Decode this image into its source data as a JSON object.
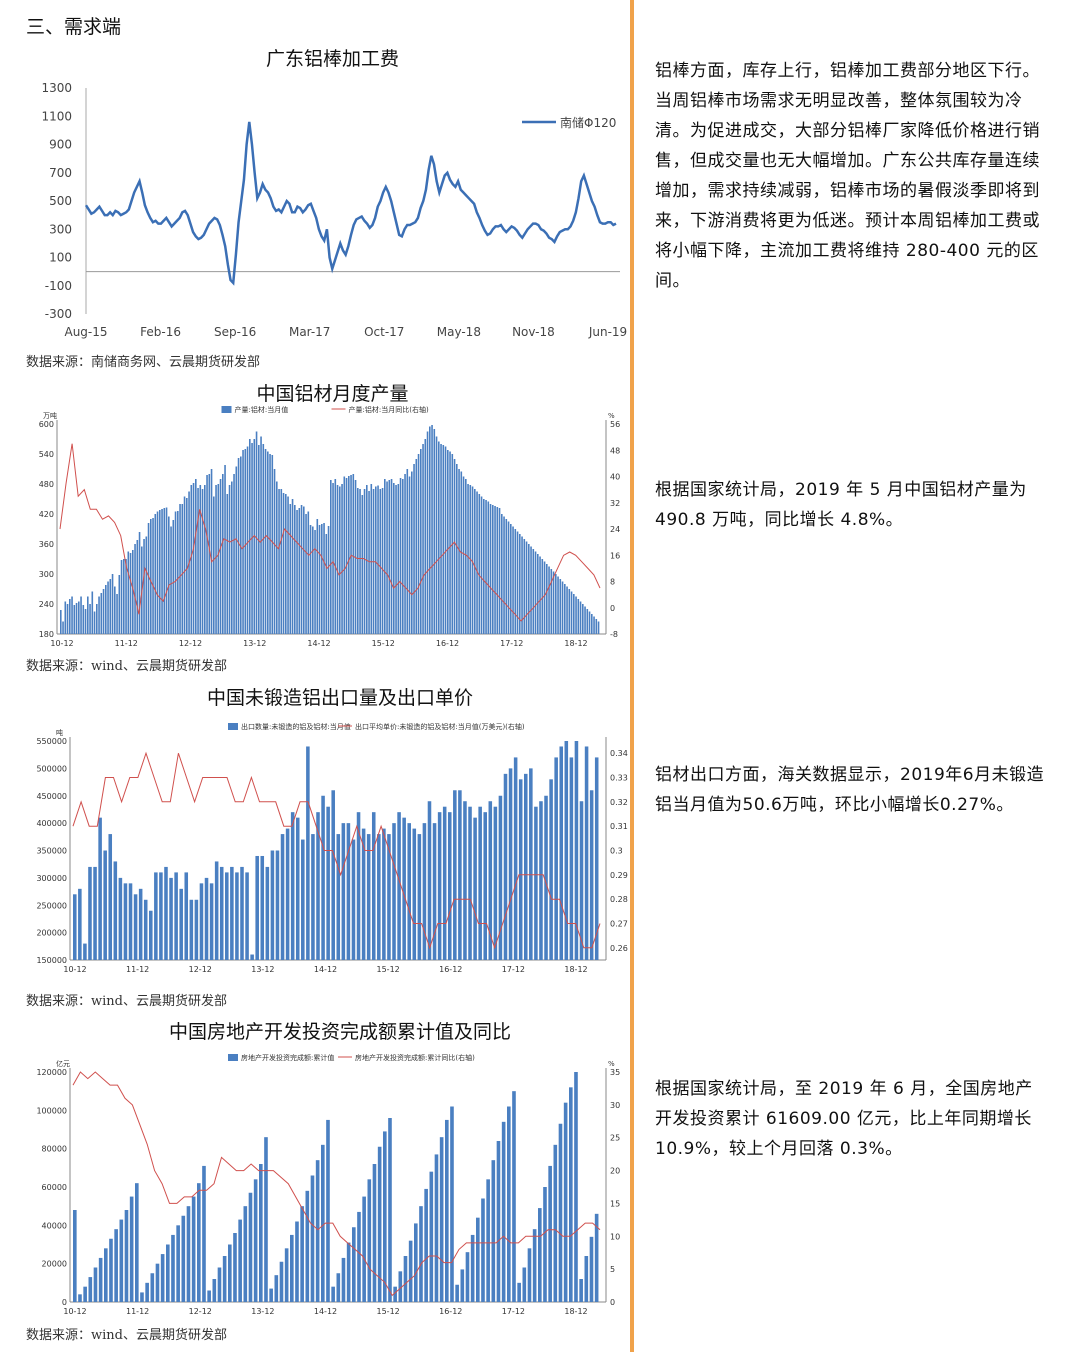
{
  "section_title": "三、需求端",
  "colors": {
    "divider": "#f0a24a",
    "bar": "#4a7fc1",
    "line_main": "#3b6fb5",
    "line_red": "#d0504d"
  },
  "panels": [
    {
      "title": "广东铝棒加工费",
      "source": "数据来源：南储商务网、云晨期货研发部",
      "description": "铝棒方面，库存上行，铝棒加工费部分地区下行。当周铝棒市场需求无明显改善，整体氛围较为冷清。为促进成交，大部分铝棒厂家降低价格进行销售，但成交量也无大幅增加。广东公共库存量连续增加，需求持续减弱，铝棒市场的暑假淡季即将到来，下游消费将更为低迷。预计本周铝棒加工费或将小幅下降，主流加工费将维持 280-400 元的区间。"
    },
    {
      "title": "中国铝材月度产量",
      "source": "数据来源：wind、云晨期货研发部",
      "description": "根据国家统计局，2019 年 5 月中国铝材产量为 490.8 万吨，同比增长 4.8%。"
    },
    {
      "title": "中国未锻造铝出口量及出口单价",
      "source": "数据来源：wind、云晨期货研发部",
      "description": "铝材出口方面，海关数据显示，2019年6月未锻造铝当月值为50.6万吨，环比小幅增长0.27%。"
    },
    {
      "title": "中国房地产开发投资完成额累计值及同比",
      "source": "数据来源：wind、云晨期货研发部",
      "description": "根据国家统计局，至 2019 年 6 月，全国房地产开发投资累计 61609.00 亿元，比上年同期增长 10.9%，较上个月回落 0.3%。"
    }
  ],
  "chart_data": [
    {
      "type": "line",
      "title": "广东铝棒加工费",
      "legend": "南储Φ120",
      "ylim": [
        -300,
        1300
      ],
      "yticks": [
        1300,
        1100,
        900,
        700,
        500,
        300,
        100,
        -100,
        -300
      ],
      "xticks": [
        "Aug-15",
        "Feb-16",
        "Sep-16",
        "Mar-17",
        "Oct-17",
        "May-18",
        "Nov-18",
        "Jun-19"
      ],
      "values": [
        470,
        440,
        410,
        420,
        440,
        460,
        430,
        400,
        400,
        420,
        400,
        430,
        420,
        400,
        410,
        420,
        440,
        500,
        560,
        600,
        640,
        560,
        470,
        420,
        380,
        350,
        360,
        340,
        340,
        360,
        380,
        350,
        320,
        340,
        360,
        380,
        420,
        430,
        400,
        340,
        280,
        250,
        230,
        240,
        260,
        300,
        340,
        360,
        380,
        370,
        330,
        260,
        180,
        50,
        -60,
        -80,
        120,
        350,
        500,
        650,
        900,
        1060,
        900,
        700,
        520,
        560,
        620,
        580,
        560,
        520,
        460,
        430,
        440,
        420,
        460,
        500,
        480,
        420,
        420,
        460,
        450,
        420,
        440,
        470,
        480,
        430,
        380,
        300,
        250,
        220,
        300,
        100,
        20,
        80,
        140,
        200,
        150,
        120,
        180,
        260,
        330,
        370,
        380,
        390,
        360,
        340,
        310,
        330,
        380,
        460,
        500,
        560,
        600,
        560,
        500,
        420,
        340,
        260,
        250,
        300,
        330,
        330,
        340,
        350,
        380,
        450,
        500,
        580,
        720,
        820,
        760,
        640,
        560,
        620,
        680,
        700,
        650,
        620,
        600,
        640,
        580,
        560,
        540,
        520,
        500,
        480,
        420,
        380,
        330,
        290,
        260,
        270,
        300,
        320,
        320,
        330,
        300,
        280,
        300,
        320,
        310,
        290,
        260,
        240,
        270,
        300,
        320,
        340,
        340,
        330,
        300,
        290,
        270,
        240,
        230,
        210,
        250,
        280,
        290,
        300,
        300,
        320,
        360,
        420,
        520,
        640,
        680,
        620,
        560,
        500,
        460,
        400,
        350,
        340,
        340,
        350,
        350,
        330,
        340
      ],
      "values_note": "weekly values Aug-15 to Jul-19, read from plot"
    },
    {
      "type": "bar+line",
      "title": "中国铝材月度产量",
      "legend": [
        "产量:铝材:当月值",
        "产量:铝材:当月同比(右轴)"
      ],
      "yunit_left": "万吨",
      "yunit_right": "%",
      "ylim_left": [
        180,
        600
      ],
      "yticks_left": [
        600,
        540,
        480,
        420,
        360,
        300,
        240,
        180
      ],
      "ylim_right": [
        -8,
        56
      ],
      "yticks_right": [
        56,
        48,
        40,
        32,
        24,
        16,
        8,
        0,
        -8
      ],
      "xticks": [
        "10-12",
        "11-12",
        "12-12",
        "13-12",
        "14-12",
        "15-12",
        "16-12",
        "17-12",
        "18-12"
      ],
      "bars": [
        228,
        205,
        245,
        240,
        250,
        255,
        238,
        242,
        245,
        255,
        238,
        230,
        255,
        240,
        265,
        225,
        240,
        255,
        262,
        270,
        278,
        285,
        290,
        300,
        275,
        260,
        298,
        328,
        330,
        330,
        345,
        342,
        348,
        360,
        368,
        384,
        355,
        370,
        375,
        402,
        410,
        412,
        420,
        425,
        428,
        430,
        432,
        433,
        415,
        395,
        408,
        425,
        426,
        440,
        440,
        455,
        452,
        465,
        478,
        482,
        490,
        472,
        478,
        470,
        478,
        498,
        500,
        510,
        455,
        478,
        480,
        490,
        500,
        518,
        460,
        478,
        485,
        500,
        515,
        532,
        535,
        548,
        550,
        555,
        570,
        562,
        570,
        585,
        558,
        575,
        560,
        550,
        545,
        540,
        538,
        510,
        485,
        470,
        470,
        462,
        460,
        455,
        440,
        450,
        438,
        428,
        432,
        438,
        435,
        420,
        425,
        398,
        395,
        388,
        410,
        398,
        400,
        402,
        380,
        396,
        488,
        482,
        490,
        478,
        475,
        480,
        495,
        492,
        496,
        498,
        500,
        488,
        472,
        470,
        458,
        470,
        478,
        466,
        480,
        470,
        475,
        477,
        470,
        472,
        490,
        485,
        488,
        490,
        482,
        478,
        480,
        492,
        490,
        500,
        510,
        495,
        505,
        520,
        530,
        540,
        550,
        560,
        570,
        585,
        595,
        598,
        590,
        575,
        565,
        560,
        558,
        555,
        548,
        545,
        540,
        530,
        520,
        510,
        505,
        495,
        490,
        480,
        478,
        475,
        470,
        465,
        460,
        455,
        450,
        448,
        445,
        440,
        438,
        436,
        434,
        432,
        420,
        415,
        410,
        405,
        400,
        395,
        390,
        385,
        380,
        375,
        370,
        365,
        360,
        355,
        350,
        345,
        340,
        335,
        330,
        325,
        320,
        315,
        310,
        305,
        300,
        295,
        290,
        285,
        280,
        275,
        270,
        265,
        260,
        255,
        250,
        245,
        240,
        235,
        230,
        225,
        220,
        215,
        210,
        205
      ],
      "line": [
        24,
        38,
        50,
        34,
        36,
        30,
        30,
        27,
        28,
        26,
        22,
        12,
        6,
        -2,
        12,
        8,
        4,
        2,
        7,
        8,
        10,
        12,
        18,
        30,
        24,
        14,
        16,
        21,
        20,
        21,
        18,
        20,
        22,
        20,
        22,
        20,
        18,
        24,
        22,
        20,
        18,
        16,
        18,
        16,
        12,
        14,
        10,
        12,
        16,
        15,
        15,
        14,
        14,
        12,
        10,
        6,
        8,
        6,
        4,
        6,
        10,
        12,
        14,
        16,
        18,
        20,
        17,
        16,
        14,
        10,
        8,
        6,
        4,
        2,
        0,
        -2,
        -4,
        -2,
        0,
        2,
        4,
        8,
        12,
        16,
        17,
        16,
        14,
        12,
        10,
        6
      ]
    },
    {
      "type": "bar+line",
      "title": "中国未锻造铝出口量及出口单价",
      "legend": [
        "出口数量:未锻造的铝及铝材:当月值",
        "出口平均单价:未锻造的铝及铝材:当月值(万美元)(右轴)"
      ],
      "yunit_left": "吨",
      "ylim_left": [
        150000,
        550000
      ],
      "yticks_left": [
        550000,
        500000,
        450000,
        400000,
        350000,
        300000,
        250000,
        200000,
        150000
      ],
      "ylim_right": [
        0.255,
        0.345
      ],
      "yticks_right": [
        0.34,
        0.33,
        0.32,
        0.31,
        0.3,
        0.29,
        0.28,
        0.27,
        0.26
      ],
      "xticks": [
        "10-12",
        "11-12",
        "12-12",
        "13-12",
        "14-12",
        "15-12",
        "16-12",
        "17-12",
        "18-12"
      ],
      "bars": [
        270000,
        280000,
        180000,
        320000,
        320000,
        410000,
        350000,
        380000,
        330000,
        300000,
        290000,
        290000,
        270000,
        280000,
        260000,
        240000,
        310000,
        310000,
        320000,
        300000,
        310000,
        280000,
        310000,
        260000,
        260000,
        290000,
        300000,
        290000,
        330000,
        320000,
        310000,
        320000,
        310000,
        320000,
        310000,
        160000,
        340000,
        340000,
        320000,
        350000,
        350000,
        380000,
        390000,
        420000,
        410000,
        370000,
        540000,
        380000,
        420000,
        450000,
        430000,
        460000,
        380000,
        400000,
        400000,
        370000,
        420000,
        390000,
        380000,
        420000,
        380000,
        390000,
        380000,
        400000,
        420000,
        410000,
        400000,
        390000,
        380000,
        400000,
        440000,
        400000,
        420000,
        430000,
        420000,
        460000,
        460000,
        440000,
        430000,
        410000,
        430000,
        420000,
        440000,
        430000,
        450000,
        490000,
        500000,
        520000,
        480000,
        490000,
        500000,
        430000,
        440000,
        450000,
        480000,
        520000,
        540000,
        550000,
        520000,
        550000,
        440000,
        540000,
        460000,
        520000
      ],
      "line": [
        0.31,
        0.32,
        0.31,
        0.31,
        0.33,
        0.33,
        0.32,
        0.33,
        0.33,
        0.34,
        0.33,
        0.32,
        0.32,
        0.34,
        0.33,
        0.32,
        0.33,
        0.33,
        0.33,
        0.33,
        0.32,
        0.32,
        0.33,
        0.32,
        0.32,
        0.32,
        0.31,
        0.31,
        0.32,
        0.32,
        0.31,
        0.3,
        0.3,
        0.29,
        0.3,
        0.31,
        0.3,
        0.3,
        0.31,
        0.3,
        0.29,
        0.28,
        0.27,
        0.27,
        0.26,
        0.27,
        0.27,
        0.28,
        0.28,
        0.28,
        0.27,
        0.27,
        0.26,
        0.27,
        0.28,
        0.29,
        0.29,
        0.29,
        0.29,
        0.28,
        0.28,
        0.27,
        0.27,
        0.26,
        0.26,
        0.27
      ],
      "line_note": "export average price series (right axis)"
    },
    {
      "type": "bar+line",
      "title": "中国房地产开发投资完成额累计值及同比",
      "legend": [
        "房地产开发投资完成额:累计值",
        "房地产开发投资完成额:累计同比(右轴)"
      ],
      "yunit_left": "亿元",
      "yunit_right": "%",
      "ylim_left": [
        0,
        120000
      ],
      "yticks_left": [
        120000,
        100000,
        80000,
        60000,
        40000,
        20000,
        0
      ],
      "ylim_right": [
        0,
        35
      ],
      "yticks_right": [
        35,
        30,
        25,
        20,
        15,
        10,
        5,
        0
      ],
      "xticks": [
        "10-12",
        "11-12",
        "12-12",
        "13-12",
        "14-12",
        "15-12",
        "16-12",
        "17-12",
        "18-12"
      ],
      "bars": [
        48000,
        4000,
        8000,
        13000,
        18000,
        23000,
        28000,
        33000,
        38000,
        43000,
        48000,
        55000,
        62000,
        5000,
        10000,
        15000,
        20000,
        25000,
        30000,
        35000,
        40000,
        45000,
        50000,
        55000,
        62000,
        71000,
        6000,
        12000,
        18000,
        24000,
        30000,
        36000,
        43000,
        50000,
        57000,
        64000,
        72000,
        86000,
        7000,
        14000,
        21000,
        28000,
        35000,
        42000,
        50000,
        58000,
        66000,
        74000,
        82000,
        95000,
        8000,
        15000,
        23000,
        31000,
        39000,
        47000,
        55000,
        64000,
        72000,
        81000,
        89000,
        96000,
        8000,
        16000,
        24000,
        32000,
        41000,
        50000,
        59000,
        68000,
        77000,
        86000,
        95000,
        102000,
        9000,
        17000,
        26000,
        35000,
        44000,
        54000,
        64000,
        74000,
        84000,
        94000,
        102000,
        110000,
        10000,
        18000,
        28000,
        38000,
        49000,
        60000,
        71000,
        82000,
        93000,
        104000,
        112000,
        120000,
        12000,
        24000,
        34000,
        46000
      ],
      "line": [
        33,
        35,
        34,
        35,
        34,
        33,
        33,
        31,
        30,
        27,
        24,
        20,
        18,
        15,
        15,
        16,
        16,
        17,
        17,
        18,
        22,
        21,
        20,
        20,
        21,
        20,
        20,
        20,
        19,
        18,
        16,
        14,
        12,
        11,
        12,
        12,
        10,
        9,
        8,
        7,
        5,
        4,
        3,
        1,
        2,
        3,
        4,
        6,
        7,
        7,
        6,
        6,
        8,
        9,
        9,
        9,
        9,
        9,
        10,
        9,
        9,
        10,
        10,
        10,
        11,
        11,
        10,
        10,
        11,
        12,
        12,
        11
      ]
    }
  ]
}
